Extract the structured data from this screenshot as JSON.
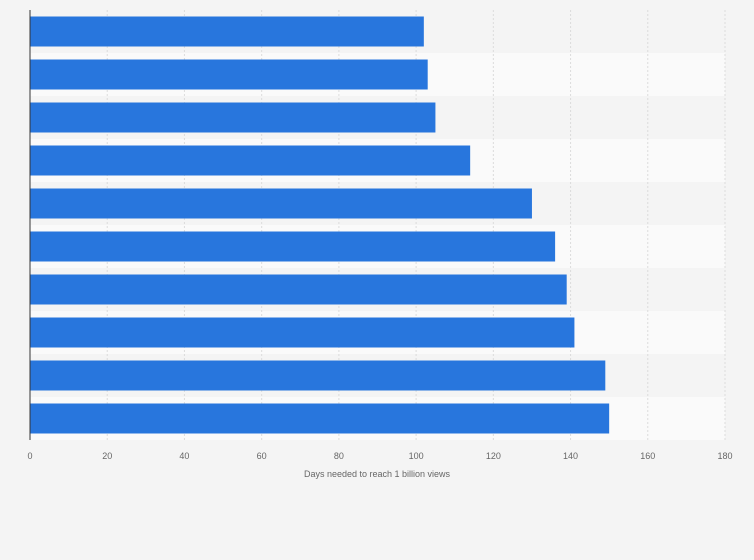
{
  "chart_data": {
    "type": "bar",
    "orientation": "horizontal",
    "xlabel": "Days needed to reach 1 billion views",
    "xlim": [
      0,
      180
    ],
    "x_ticks": [
      0,
      20,
      40,
      60,
      80,
      100,
      120,
      140,
      160,
      180
    ],
    "x_tick_labels": [
      "0",
      "20",
      "40",
      "60",
      "80",
      "100",
      "120",
      "140",
      "160",
      "180"
    ],
    "categories": [
      "",
      "",
      "",
      "",
      "",
      "",
      "",
      "",
      "",
      ""
    ],
    "values": [
      102,
      103,
      105,
      114,
      130,
      136,
      139,
      141,
      149,
      150
    ],
    "grid": "vertical",
    "bar_color": "#2876dd",
    "row_band_colors": [
      "#f4f4f4",
      "#fafafa"
    ],
    "gridline_color": "#dcdcdc",
    "background_color": "#f4f4f4"
  }
}
